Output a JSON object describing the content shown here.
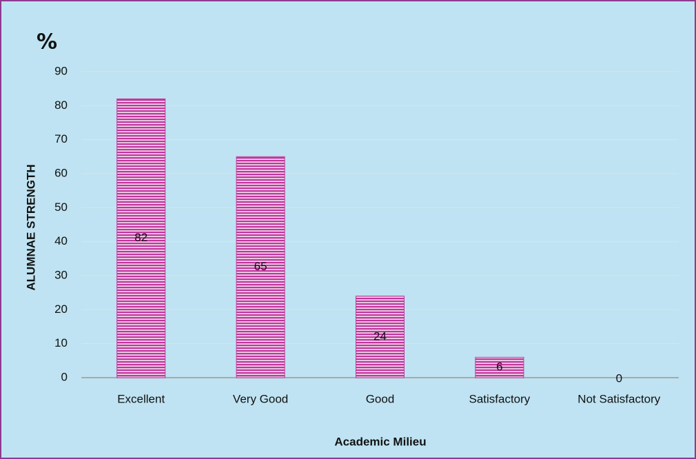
{
  "chart_data": {
    "type": "bar",
    "title": "%",
    "x_label": "Academic Milieu",
    "y_label": "ALUMNAE STRENGTH",
    "categories": [
      "Excellent",
      "Very Good",
      "Good",
      "Satisfactory",
      "Not Satisfactory"
    ],
    "values": [
      82,
      65,
      24,
      6,
      0
    ],
    "color": "#c0369c",
    "ylim": [
      0,
      90
    ],
    "yticks": [
      0,
      10,
      20,
      30,
      40,
      50,
      60,
      70,
      80,
      90
    ],
    "grid": true
  }
}
